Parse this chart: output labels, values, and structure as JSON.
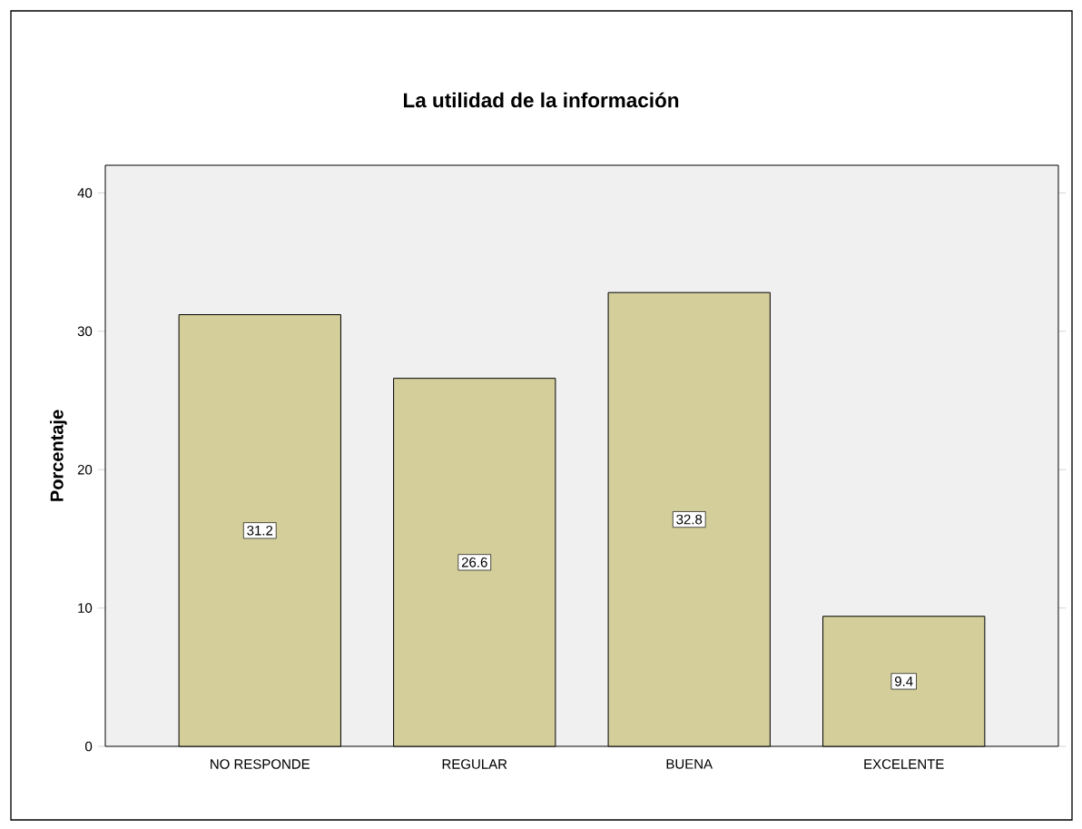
{
  "chart_data": {
    "type": "bar",
    "title": "La utilidad de la información",
    "ylabel": "Porcentaje",
    "categories": [
      "NO RESPONDE",
      "REGULAR",
      "BUENA",
      "EXCELENTE"
    ],
    "values": [
      31.2,
      26.6,
      32.8,
      9.4
    ],
    "color": "#d3ce9a",
    "ylim": [
      0,
      42
    ],
    "yticks": [
      0,
      10,
      20,
      30,
      40
    ],
    "data_labels": true
  }
}
